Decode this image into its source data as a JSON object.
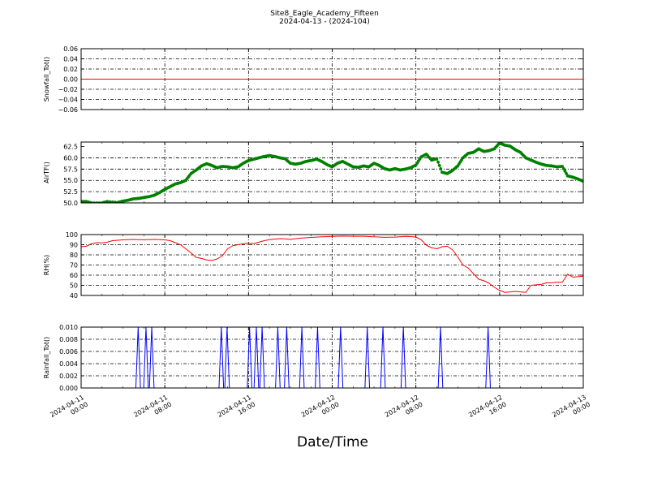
{
  "chart_data": {
    "title": "Site8_Eagle_Academy_Fifteen",
    "subtitle": "2024-04-13 - (2024-104)",
    "xlabel": "Date/Time",
    "x_range_hours": [
      0,
      48
    ],
    "x_ticks": [
      {
        "hour": 0,
        "line1": "2024-04-11",
        "line2": "00:00"
      },
      {
        "hour": 8,
        "line1": "2024-04-11",
        "line2": "08:00"
      },
      {
        "hour": 16,
        "line1": "2024-04-11",
        "line2": "16:00"
      },
      {
        "hour": 24,
        "line1": "2024-04-12",
        "line2": "00:00"
      },
      {
        "hour": 32,
        "line1": "2024-04-12",
        "line2": "08:00"
      },
      {
        "hour": 40,
        "line1": "2024-04-12",
        "line2": "16:00"
      },
      {
        "hour": 48,
        "line1": "2024-04-13",
        "line2": "00:00"
      }
    ],
    "grid": true,
    "panels": [
      {
        "key": "snow",
        "type": "line",
        "ylabel": "Snowfall_Tot()",
        "color": "#ff0000",
        "ylim": [
          -0.06,
          0.06
        ],
        "yticks": [
          -0.06,
          -0.04,
          -0.02,
          0.0,
          0.02,
          0.04,
          0.06
        ],
        "ytick_labels": [
          "−0.06",
          "−0.04",
          "−0.02",
          "0.00",
          "0.02",
          "0.04",
          "0.06"
        ],
        "markers": false,
        "points": [
          [
            0,
            0
          ],
          [
            48,
            0
          ]
        ]
      },
      {
        "key": "air",
        "type": "line",
        "ylabel": "AirTF()",
        "color": "#008000",
        "ylim": [
          50.0,
          63.5
        ],
        "yticks": [
          50.0,
          52.5,
          55.0,
          57.5,
          60.0,
          62.5
        ],
        "ytick_labels": [
          "50.0",
          "52.5",
          "55.0",
          "57.5",
          "60.0",
          "62.5"
        ],
        "markers": true,
        "points": [
          [
            0,
            50.3
          ],
          [
            0.5,
            50.3
          ],
          [
            1,
            50.0
          ],
          [
            2,
            50.0
          ],
          [
            2.5,
            50.3
          ],
          [
            3.5,
            50.1
          ],
          [
            4,
            50.4
          ],
          [
            4.5,
            50.6
          ],
          [
            5,
            50.9
          ],
          [
            5.5,
            51.0
          ],
          [
            6,
            51.2
          ],
          [
            6.5,
            51.4
          ],
          [
            7,
            51.7
          ],
          [
            7.5,
            52.3
          ],
          [
            8,
            53.0
          ],
          [
            8.5,
            53.6
          ],
          [
            9,
            54.2
          ],
          [
            9.5,
            54.5
          ],
          [
            10,
            55.0
          ],
          [
            10.5,
            56.5
          ],
          [
            11,
            57.3
          ],
          [
            11.5,
            58.2
          ],
          [
            12,
            58.7
          ],
          [
            12.5,
            58.3
          ],
          [
            13,
            57.8
          ],
          [
            13.5,
            58.1
          ],
          [
            14,
            58.0
          ],
          [
            14.5,
            57.8
          ],
          [
            15,
            58.0
          ],
          [
            15.5,
            58.8
          ],
          [
            16,
            59.4
          ],
          [
            16.5,
            59.7
          ],
          [
            17,
            60.0
          ],
          [
            17.5,
            60.3
          ],
          [
            18,
            60.5
          ],
          [
            18.5,
            60.3
          ],
          [
            19,
            60.0
          ],
          [
            19.5,
            59.8
          ],
          [
            20,
            58.8
          ],
          [
            20.5,
            58.6
          ],
          [
            21,
            58.8
          ],
          [
            21.5,
            59.2
          ],
          [
            22,
            59.4
          ],
          [
            22.5,
            59.7
          ],
          [
            23,
            59.2
          ],
          [
            23.5,
            58.5
          ],
          [
            24,
            58.0
          ],
          [
            24.5,
            58.8
          ],
          [
            25,
            59.2
          ],
          [
            25.5,
            58.6
          ],
          [
            26,
            58.0
          ],
          [
            26.5,
            57.9
          ],
          [
            27,
            58.2
          ],
          [
            27.5,
            58.0
          ],
          [
            28,
            58.8
          ],
          [
            28.5,
            58.3
          ],
          [
            29,
            57.6
          ],
          [
            29.5,
            57.3
          ],
          [
            30,
            57.6
          ],
          [
            30.5,
            57.3
          ],
          [
            31,
            57.5
          ],
          [
            31.5,
            57.8
          ],
          [
            32,
            58.4
          ],
          [
            32.5,
            60.2
          ],
          [
            33,
            60.8
          ],
          [
            33.5,
            59.5
          ],
          [
            34,
            59.8
          ],
          [
            34.5,
            56.8
          ],
          [
            35,
            56.5
          ],
          [
            35.5,
            57.2
          ],
          [
            36,
            58.2
          ],
          [
            36.5,
            60.0
          ],
          [
            37,
            61.0
          ],
          [
            37.5,
            61.2
          ],
          [
            38,
            62.0
          ],
          [
            38.5,
            61.4
          ],
          [
            39,
            61.6
          ],
          [
            39.5,
            62.0
          ],
          [
            40,
            63.3
          ],
          [
            40.5,
            62.8
          ],
          [
            41,
            62.6
          ],
          [
            41.5,
            61.8
          ],
          [
            42,
            61.2
          ],
          [
            42.5,
            60.0
          ],
          [
            43,
            59.5
          ],
          [
            43.5,
            59.0
          ],
          [
            44,
            58.6
          ],
          [
            44.5,
            58.3
          ],
          [
            45,
            58.2
          ],
          [
            45.5,
            58.0
          ],
          [
            46,
            58.1
          ],
          [
            46.5,
            56.0
          ],
          [
            47,
            55.7
          ],
          [
            47.5,
            55.3
          ],
          [
            48,
            54.8
          ]
        ]
      },
      {
        "key": "rh",
        "type": "line",
        "ylabel": "RH(%)",
        "color": "#ff0000",
        "ylim": [
          40,
          100
        ],
        "yticks": [
          40,
          50,
          60,
          70,
          80,
          90,
          100
        ],
        "ytick_labels": [
          "40",
          "50",
          "60",
          "70",
          "80",
          "90",
          "100"
        ],
        "markers": false,
        "points": [
          [
            0,
            88
          ],
          [
            0.5,
            88.5
          ],
          [
            1,
            91
          ],
          [
            1.5,
            92
          ],
          [
            2,
            91.8
          ],
          [
            2.5,
            92.5
          ],
          [
            3,
            94
          ],
          [
            4,
            94.8
          ],
          [
            5,
            95.2
          ],
          [
            6,
            94.8
          ],
          [
            7,
            95.3
          ],
          [
            8,
            94.8
          ],
          [
            8.5,
            94
          ],
          [
            9,
            92
          ],
          [
            9.5,
            90
          ],
          [
            10,
            86
          ],
          [
            10.5,
            82
          ],
          [
            11,
            77.5
          ],
          [
            11.5,
            76.5
          ],
          [
            12,
            75
          ],
          [
            12.5,
            74.5
          ],
          [
            13,
            76
          ],
          [
            13.5,
            79
          ],
          [
            14,
            86
          ],
          [
            14.5,
            89
          ],
          [
            15,
            90
          ],
          [
            15.5,
            91
          ],
          [
            16,
            91.5
          ],
          [
            16.5,
            91
          ],
          [
            17,
            92.5
          ],
          [
            17.5,
            94
          ],
          [
            18,
            95
          ],
          [
            19,
            96
          ],
          [
            19.5,
            95.8
          ],
          [
            20,
            95.3
          ],
          [
            21,
            96.5
          ],
          [
            22,
            97.2
          ],
          [
            23,
            97.8
          ],
          [
            24,
            98.2
          ],
          [
            25,
            98.5
          ],
          [
            26,
            98.3
          ],
          [
            27,
            98.3
          ],
          [
            28,
            97.8
          ],
          [
            29,
            97.3
          ],
          [
            30,
            97.5
          ],
          [
            31,
            98.2
          ],
          [
            31.5,
            98
          ],
          [
            32,
            97.5
          ],
          [
            32.5,
            95
          ],
          [
            33,
            89.5
          ],
          [
            33.5,
            87
          ],
          [
            34,
            86
          ],
          [
            34.5,
            88
          ],
          [
            35,
            88.5
          ],
          [
            35.5,
            85
          ],
          [
            36,
            78
          ],
          [
            36.5,
            70
          ],
          [
            37,
            67
          ],
          [
            37.5,
            61.5
          ],
          [
            38,
            56
          ],
          [
            38.5,
            54.5
          ],
          [
            39,
            52
          ],
          [
            39.5,
            48
          ],
          [
            40,
            45
          ],
          [
            40.5,
            43
          ],
          [
            41,
            43.5
          ],
          [
            41.5,
            44
          ],
          [
            42,
            43.5
          ],
          [
            42.5,
            43
          ],
          [
            43,
            50
          ],
          [
            43.5,
            50.5
          ],
          [
            44,
            51
          ],
          [
            44.5,
            52.5
          ],
          [
            45,
            52.5
          ],
          [
            45.5,
            53
          ],
          [
            46,
            53
          ],
          [
            46.5,
            61
          ],
          [
            47,
            58
          ],
          [
            47.5,
            58.5
          ],
          [
            48,
            59
          ]
        ]
      },
      {
        "key": "rain",
        "type": "line",
        "ylabel": "Rainfall_Tot()",
        "color": "#0000ff",
        "ylim": [
          0.0,
          0.01
        ],
        "yticks": [
          0.0,
          0.002,
          0.004,
          0.006,
          0.008,
          0.01
        ],
        "ytick_labels": [
          "0.000",
          "0.002",
          "0.004",
          "0.006",
          "0.008",
          "0.010"
        ],
        "markers": false,
        "spikes": [
          5.45,
          6.2,
          6.75,
          13.4,
          13.95,
          16.1,
          16.75,
          17.3,
          18.8,
          19.65,
          21.1,
          22.6,
          24.8,
          27.35,
          28.85,
          30.8,
          34.35,
          38.9
        ],
        "spike_value": 0.01,
        "spike_half_width": 0.22
      }
    ]
  }
}
